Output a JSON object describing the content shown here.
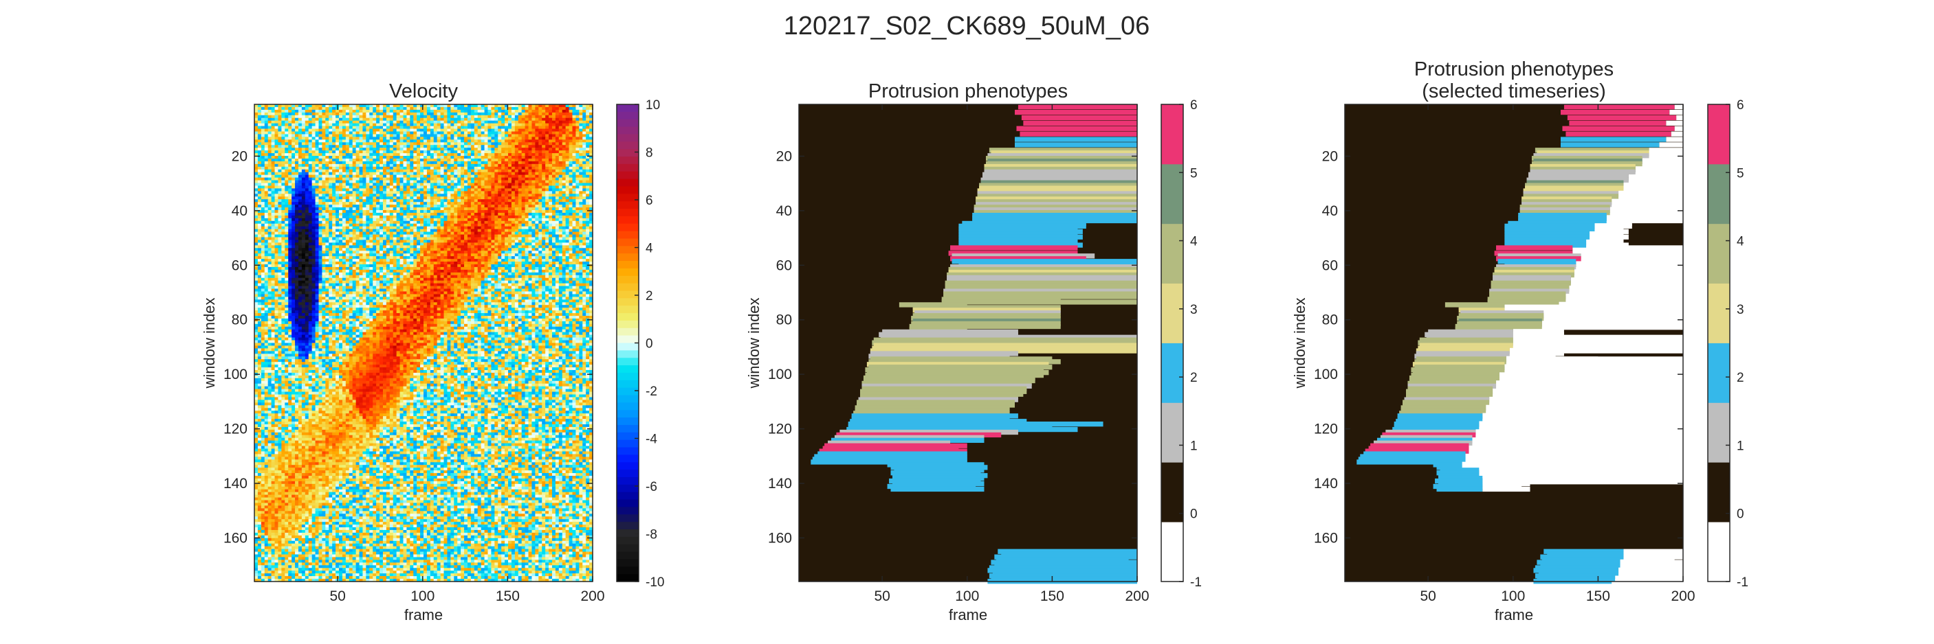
{
  "figure": {
    "suptitle": "120217_S02_CK689_50uM_06"
  },
  "chart_data": [
    {
      "type": "heatmap",
      "title_lines": [
        "Velocity"
      ],
      "xlabel": "frame",
      "ylabel": "window index",
      "xlim": [
        1,
        200
      ],
      "ylim": [
        1,
        176
      ],
      "y_reversed": true,
      "xticks": [
        50,
        100,
        150,
        200
      ],
      "yticks": [
        20,
        40,
        60,
        80,
        100,
        120,
        140,
        160
      ],
      "colorbar": {
        "range": [
          -10,
          10
        ],
        "ticks": [
          10,
          8,
          6,
          4,
          2,
          0,
          -2,
          -4,
          -6,
          -8,
          -10
        ],
        "colormap": "jet-like (blue negative, cyan/yellow near zero, red/purple positive)"
      },
      "features": [
        {
          "description": "dark blue band",
          "frames": [
            20,
            40
          ],
          "windows": [
            25,
            95
          ],
          "value": -9
        },
        {
          "description": "red diagonal band",
          "from": {
            "frame": 60,
            "window": 110
          },
          "to": {
            "frame": 185,
            "window": 2
          },
          "value": 5
        },
        {
          "description": "red diagonal band lower",
          "from": {
            "frame": 5,
            "window": 155
          },
          "to": {
            "frame": 85,
            "window": 95
          },
          "value": 3
        }
      ]
    },
    {
      "type": "heatmap",
      "title_lines": [
        "Protrusion phenotypes"
      ],
      "xlabel": "frame",
      "ylabel": "window index",
      "xlim": [
        1,
        200
      ],
      "ylim": [
        1,
        176
      ],
      "y_reversed": true,
      "xticks": [
        50,
        100,
        150,
        200
      ],
      "yticks": [
        20,
        40,
        60,
        80,
        100,
        120,
        140,
        160
      ],
      "colorbar": {
        "range": [
          -1,
          6
        ],
        "ticks": [
          6,
          5,
          4,
          3,
          2,
          1,
          0,
          -1
        ],
        "classes": [
          {
            "value": -1,
            "color": "#ffffff"
          },
          {
            "value": 0,
            "color": "#251808"
          },
          {
            "value": 1,
            "color": "#bebebe"
          },
          {
            "value": 2,
            "color": "#35b8ea"
          },
          {
            "value": 3,
            "color": "#e3d98a"
          },
          {
            "value": 4,
            "color": "#b3bb80"
          },
          {
            "value": 5,
            "color": "#74967a"
          },
          {
            "value": 6,
            "color": "#ec3574"
          }
        ]
      },
      "background_class": 0,
      "segments": [
        [
          1,
          130,
          200,
          6
        ],
        [
          3,
          128,
          200,
          6
        ],
        [
          5,
          132,
          200,
          6
        ],
        [
          7,
          133,
          200,
          6
        ],
        [
          9,
          129,
          200,
          6
        ],
        [
          11,
          131,
          200,
          6
        ],
        [
          13,
          128,
          200,
          2
        ],
        [
          15,
          128,
          200,
          2
        ],
        [
          17,
          113,
          200,
          4
        ],
        [
          18,
          114,
          200,
          3
        ],
        [
          19,
          112,
          200,
          1
        ],
        [
          20,
          111,
          200,
          4
        ],
        [
          21,
          112,
          200,
          5
        ],
        [
          22,
          111,
          200,
          4
        ],
        [
          23,
          110,
          200,
          3
        ],
        [
          24,
          110,
          200,
          4
        ],
        [
          25,
          110,
          200,
          1
        ],
        [
          26,
          109,
          200,
          1
        ],
        [
          27,
          109,
          200,
          1
        ],
        [
          28,
          108,
          200,
          1
        ],
        [
          29,
          108,
          200,
          5
        ],
        [
          30,
          107,
          200,
          4
        ],
        [
          31,
          107,
          200,
          3
        ],
        [
          32,
          106,
          200,
          3
        ],
        [
          33,
          106,
          200,
          1
        ],
        [
          34,
          106,
          200,
          4
        ],
        [
          35,
          105,
          200,
          3
        ],
        [
          36,
          105,
          200,
          4
        ],
        [
          37,
          105,
          200,
          1
        ],
        [
          38,
          104,
          200,
          4
        ],
        [
          39,
          104,
          200,
          1
        ],
        [
          40,
          104,
          200,
          4
        ],
        [
          41,
          103,
          200,
          2
        ],
        [
          42,
          103,
          200,
          2
        ],
        [
          43,
          103,
          200,
          2
        ],
        [
          44,
          97,
          170,
          2
        ],
        [
          45,
          95,
          170,
          2
        ],
        [
          46,
          95,
          165,
          2
        ],
        [
          47,
          95,
          168,
          2
        ],
        [
          48,
          95,
          165,
          2
        ],
        [
          49,
          95,
          168,
          2
        ],
        [
          50,
          95,
          165,
          2
        ],
        [
          51,
          95,
          165,
          2
        ],
        [
          52,
          95,
          168,
          2
        ],
        [
          53,
          90,
          165,
          6
        ],
        [
          55,
          89,
          165,
          6
        ],
        [
          56,
          91,
          175,
          1
        ],
        [
          57,
          90,
          170,
          6
        ],
        [
          58,
          91,
          200,
          2
        ],
        [
          59,
          95,
          200,
          2
        ],
        [
          60,
          90,
          200,
          1
        ],
        [
          61,
          89,
          200,
          4
        ],
        [
          62,
          89,
          200,
          3
        ],
        [
          63,
          88,
          200,
          4
        ],
        [
          64,
          88,
          200,
          1
        ],
        [
          65,
          88,
          200,
          1
        ],
        [
          66,
          87,
          200,
          4
        ],
        [
          67,
          87,
          200,
          4
        ],
        [
          68,
          87,
          200,
          4
        ],
        [
          69,
          86,
          200,
          1
        ],
        [
          70,
          86,
          200,
          4
        ],
        [
          71,
          86,
          200,
          4
        ],
        [
          72,
          85,
          155,
          4
        ],
        [
          73,
          85,
          200,
          4
        ],
        [
          74,
          60,
          100,
          4
        ],
        [
          75,
          68,
          155,
          4
        ],
        [
          76,
          68,
          155,
          3
        ],
        [
          77,
          69,
          155,
          1
        ],
        [
          78,
          68,
          155,
          4
        ],
        [
          79,
          67,
          155,
          4
        ],
        [
          80,
          68,
          155,
          5
        ],
        [
          81,
          67,
          155,
          4
        ],
        [
          82,
          66,
          155,
          4
        ],
        [
          83,
          66,
          100,
          4
        ],
        [
          84,
          50,
          130,
          1
        ],
        [
          85,
          48,
          130,
          1
        ],
        [
          86,
          49,
          200,
          1
        ],
        [
          87,
          45,
          200,
          4
        ],
        [
          88,
          44,
          200,
          4
        ],
        [
          89,
          45,
          200,
          3
        ],
        [
          90,
          44,
          200,
          3
        ],
        [
          91,
          43,
          200,
          3
        ],
        [
          92,
          43,
          130,
          1
        ],
        [
          93,
          42,
          125,
          1
        ],
        [
          94,
          43,
          150,
          4
        ],
        [
          95,
          42,
          155,
          4
        ],
        [
          96,
          41,
          148,
          3
        ],
        [
          97,
          42,
          150,
          4
        ],
        [
          98,
          40,
          145,
          4
        ],
        [
          99,
          41,
          148,
          4
        ],
        [
          100,
          40,
          145,
          4
        ],
        [
          101,
          39,
          140,
          4
        ],
        [
          102,
          39,
          140,
          4
        ],
        [
          103,
          38,
          138,
          4
        ],
        [
          104,
          38,
          138,
          1
        ],
        [
          105,
          38,
          135,
          4
        ],
        [
          106,
          37,
          135,
          4
        ],
        [
          107,
          37,
          133,
          4
        ],
        [
          108,
          37,
          130,
          4
        ],
        [
          109,
          36,
          130,
          1
        ],
        [
          110,
          35,
          128,
          4
        ],
        [
          111,
          35,
          128,
          4
        ],
        [
          112,
          34,
          125,
          4
        ],
        [
          113,
          34,
          125,
          4
        ],
        [
          114,
          33,
          125,
          4
        ],
        [
          115,
          32,
          130,
          2
        ],
        [
          116,
          32,
          125,
          2
        ],
        [
          117,
          31,
          135,
          2
        ],
        [
          118,
          30,
          180,
          2
        ],
        [
          119,
          30,
          150,
          2
        ],
        [
          120,
          29,
          165,
          2
        ],
        [
          121,
          25,
          130,
          1
        ],
        [
          122,
          23,
          120,
          6
        ],
        [
          123,
          22,
          110,
          1
        ],
        [
          124,
          20,
          110,
          2
        ],
        [
          125,
          18,
          90,
          1
        ],
        [
          126,
          16,
          100,
          6
        ],
        [
          127,
          15,
          95,
          6
        ],
        [
          128,
          13,
          100,
          6
        ],
        [
          129,
          12,
          100,
          2
        ],
        [
          130,
          10,
          100,
          2
        ],
        [
          131,
          9,
          100,
          2
        ],
        [
          132,
          8,
          100,
          2
        ],
        [
          133,
          53,
          110,
          2
        ],
        [
          134,
          55,
          112,
          2
        ],
        [
          135,
          57,
          110,
          2
        ],
        [
          136,
          55,
          108,
          2
        ],
        [
          137,
          56,
          112,
          2
        ],
        [
          138,
          56,
          110,
          2
        ],
        [
          139,
          54,
          108,
          2
        ],
        [
          140,
          56,
          110,
          2
        ],
        [
          141,
          53,
          105,
          2
        ],
        [
          142,
          55,
          110,
          2
        ],
        [
          165,
          118,
          200,
          2
        ],
        [
          166,
          120,
          200,
          2
        ],
        [
          167,
          116,
          200,
          2
        ],
        [
          168,
          117,
          195,
          2
        ],
        [
          169,
          114,
          200,
          2
        ],
        [
          170,
          116,
          200,
          2
        ],
        [
          171,
          113,
          200,
          2
        ],
        [
          172,
          112,
          200,
          2
        ],
        [
          173,
          115,
          200,
          2
        ],
        [
          174,
          113,
          200,
          2
        ],
        [
          175,
          114,
          200,
          2
        ],
        [
          176,
          112,
          200,
          2
        ]
      ]
    },
    {
      "type": "heatmap",
      "title_lines": [
        "Protrusion phenotypes",
        "(selected timeseries)"
      ],
      "xlabel": "frame",
      "ylabel": "window index",
      "xlim": [
        1,
        200
      ],
      "ylim": [
        1,
        176
      ],
      "y_reversed": true,
      "xticks": [
        50,
        100,
        150,
        200
      ],
      "yticks": [
        20,
        40,
        60,
        80,
        100,
        120,
        140,
        160
      ],
      "colorbar": {
        "range": [
          -1,
          6
        ],
        "ticks": [
          6,
          5,
          4,
          3,
          2,
          1,
          0,
          -1
        ],
        "classes": [
          {
            "value": -1,
            "color": "#ffffff"
          },
          {
            "value": 0,
            "color": "#251808"
          },
          {
            "value": 1,
            "color": "#bebebe"
          },
          {
            "value": 2,
            "color": "#35b8ea"
          },
          {
            "value": 3,
            "color": "#e3d98a"
          },
          {
            "value": 4,
            "color": "#b3bb80"
          },
          {
            "value": 5,
            "color": "#74967a"
          },
          {
            "value": 6,
            "color": "#ec3574"
          }
        ]
      },
      "background_class": 0,
      "selected_segments_note": "same windows as panel 2, truncated to the selected timeseries; the remainder shown as class -1 (white)",
      "selected_end_frames": [
        [
          1,
          195
        ],
        [
          3,
          192
        ],
        [
          5,
          196
        ],
        [
          7,
          190
        ],
        [
          9,
          195
        ],
        [
          11,
          193
        ],
        [
          13,
          190
        ],
        [
          15,
          186
        ],
        [
          17,
          180
        ],
        [
          20,
          176
        ],
        [
          23,
          172
        ],
        [
          26,
          168
        ],
        [
          29,
          165
        ],
        [
          32,
          162
        ],
        [
          35,
          158
        ],
        [
          38,
          157
        ],
        [
          41,
          155
        ],
        [
          44,
          148
        ],
        [
          47,
          145
        ],
        [
          50,
          143
        ],
        [
          53,
          135
        ],
        [
          56,
          140
        ],
        [
          58,
          137
        ],
        [
          61,
          136
        ],
        [
          64,
          134
        ],
        [
          67,
          133
        ],
        [
          70,
          131
        ],
        [
          73,
          127
        ],
        [
          74,
          95
        ],
        [
          77,
          118
        ],
        [
          80,
          117
        ],
        [
          83,
          100
        ],
        [
          85,
          100
        ],
        [
          87,
          100
        ],
        [
          90,
          98
        ],
        [
          93,
          96
        ],
        [
          96,
          95
        ],
        [
          99,
          92
        ],
        [
          102,
          90
        ],
        [
          105,
          88
        ],
        [
          108,
          86
        ],
        [
          111,
          84
        ],
        [
          114,
          82
        ],
        [
          117,
          80
        ],
        [
          120,
          78
        ],
        [
          123,
          76
        ],
        [
          126,
          74
        ],
        [
          129,
          72
        ],
        [
          132,
          70
        ],
        [
          135,
          80
        ],
        [
          138,
          82
        ],
        [
          141,
          82
        ],
        [
          165,
          165
        ],
        [
          168,
          163
        ],
        [
          171,
          162
        ],
        [
          174,
          160
        ],
        [
          176,
          158
        ]
      ],
      "white_regions": [
        {
          "frames": [
            150,
            200
          ],
          "windows": [
            1,
            16
          ]
        },
        {
          "frames": [
            135,
            200
          ],
          "windows": [
            40,
            44
          ]
        },
        {
          "frames": [
            110,
            200
          ],
          "windows": [
            45,
            140
          ]
        },
        {
          "frames": [
            155,
            200
          ],
          "windows": [
            165,
            176
          ]
        }
      ]
    }
  ]
}
